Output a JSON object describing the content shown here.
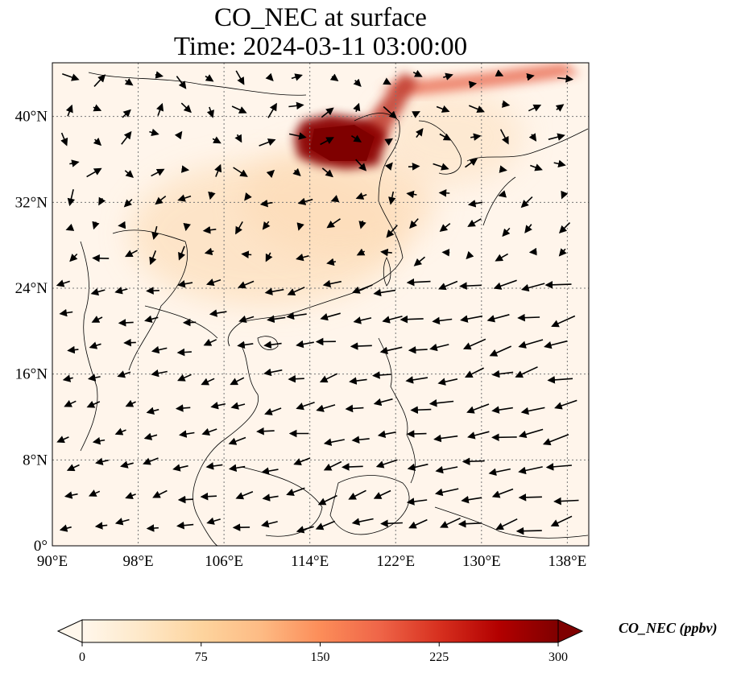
{
  "title": {
    "line1": "CO_NEC at surface",
    "line2": "Time: 2024-03-11 03:00:00"
  },
  "map": {
    "extent_lon": [
      90,
      140
    ],
    "extent_lat": [
      0,
      45
    ],
    "gridlines": "dotted",
    "lon_ticks": [
      {
        "value": 90,
        "label": "90°E"
      },
      {
        "value": 98,
        "label": "98°E"
      },
      {
        "value": 106,
        "label": "106°E"
      },
      {
        "value": 114,
        "label": "114°E"
      },
      {
        "value": 122,
        "label": "122°E"
      },
      {
        "value": 130,
        "label": "130°E"
      },
      {
        "value": 138,
        "label": "138°E"
      }
    ],
    "lat_ticks": [
      {
        "value": 0,
        "label": "0°"
      },
      {
        "value": 8,
        "label": "8°N"
      },
      {
        "value": 16,
        "label": "16°N"
      },
      {
        "value": 24,
        "label": "24°N"
      },
      {
        "value": 32,
        "label": "32°N"
      },
      {
        "value": 40,
        "label": "40°N"
      }
    ],
    "background_color": "#fff5eb",
    "coastline_color": "#000000",
    "wind_vectors": "black arrows"
  },
  "colorbar": {
    "label": "CO_NEC (ppbv)",
    "min": 0,
    "max": 300,
    "extend": "both",
    "colormap": "OrRd",
    "ticks": [
      {
        "value": 0,
        "label": "0"
      },
      {
        "value": 75,
        "label": "75"
      },
      {
        "value": 150,
        "label": "150"
      },
      {
        "value": 225,
        "label": "225"
      },
      {
        "value": 300,
        "label": "300"
      }
    ],
    "colors": [
      "#fff7ec",
      "#fee8c8",
      "#fdd49e",
      "#fdbb84",
      "#fc8d59",
      "#ef6548",
      "#d7301f",
      "#b30000",
      "#7f0000"
    ]
  }
}
